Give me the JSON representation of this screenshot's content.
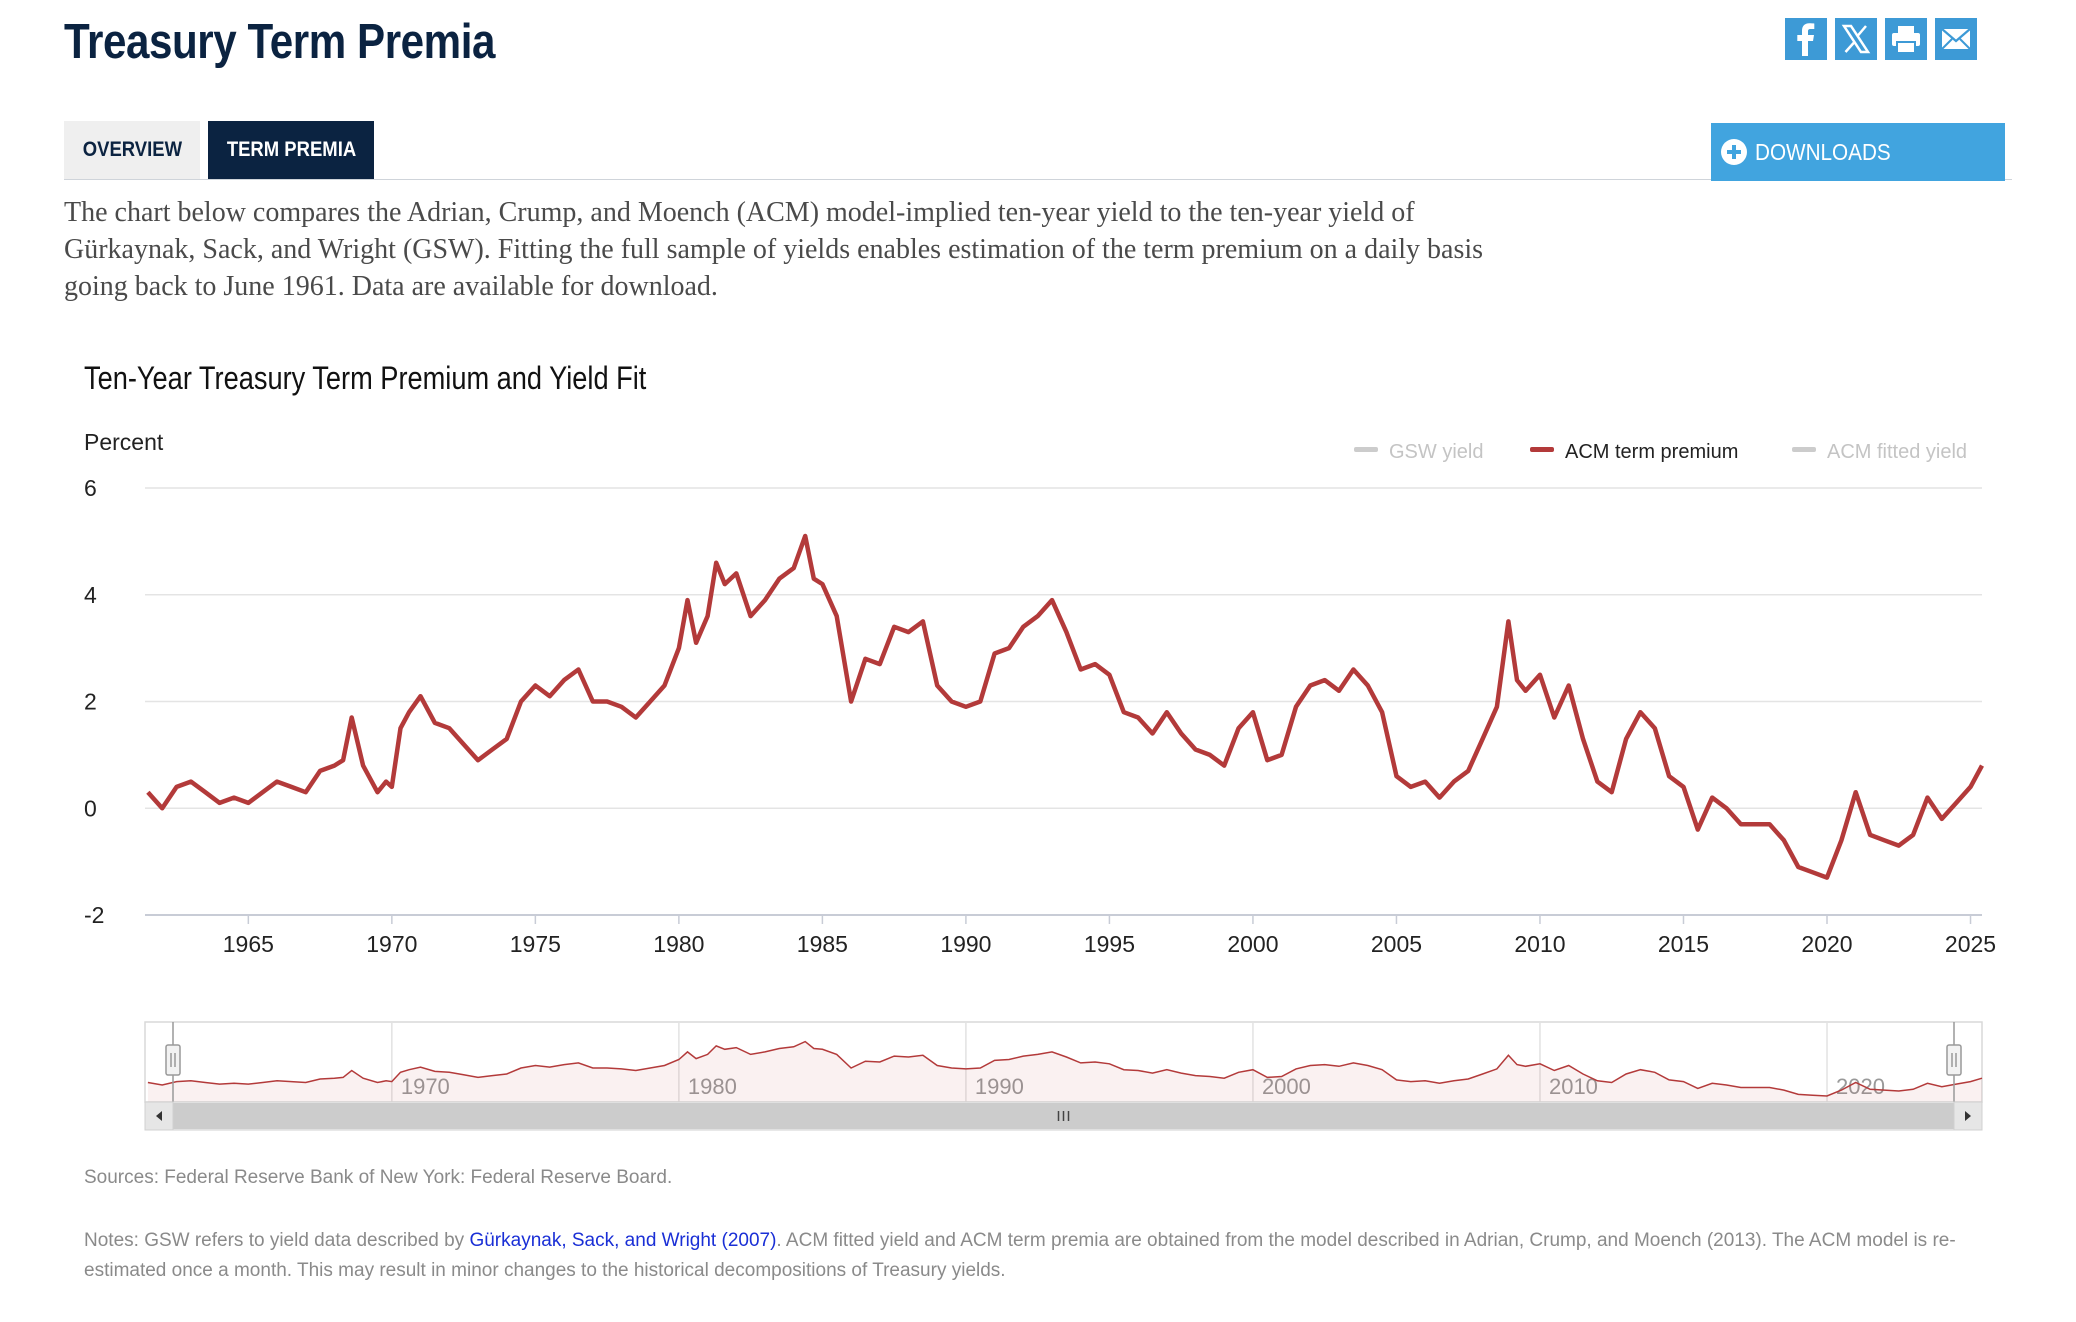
{
  "page": {
    "title": "Treasury Term Premia",
    "tabs": [
      "OVERVIEW",
      "TERM PREMIA"
    ],
    "downloads_label": "DOWNLOADS",
    "share_icons": [
      "facebook-icon",
      "x-icon",
      "print-icon",
      "email-icon"
    ],
    "intro": "The chart below compares the Adrian, Crump, and Moench (ACM) model-implied ten-year yield to the ten-year yield of Gürkaynak, Sack, and Wright (GSW). Fitting the full sample of yields enables estimation of the term premium on a daily basis going back to June 1961. Data are available for download.",
    "sources": "Sources: Federal Reserve Bank of New York: Federal Reserve Board.",
    "notes_prefix": "Notes: GSW refers to yield data described by ",
    "notes_link": "Gürkaynak, Sack, and Wright (2007)",
    "notes_suffix": ". ACM fitted yield and ACM term premia are obtained from the model described in Adrian, Crump, and Moench (2013). The ACM model is re-estimated once a month. This may result in minor changes to the historical decompositions of Treasury yields."
  },
  "colors": {
    "navy": "#0b2341",
    "share_blue": "#3d9ad6",
    "downloads_blue": "#41a4df",
    "series_red": "#b33a3a",
    "legend_grey": "#cccccc"
  },
  "chart_data": {
    "type": "line",
    "title": "Ten-Year Treasury Term Premium and Yield Fit",
    "ylabel": "Percent",
    "xlabel": "",
    "ylim": [
      -2,
      6
    ],
    "xlim": [
      1961.4,
      2025.4
    ],
    "y_ticks": [
      "6",
      "4",
      "2",
      "0",
      "-2"
    ],
    "x_ticks": [
      "1965",
      "1970",
      "1975",
      "1980",
      "1985",
      "1990",
      "1995",
      "2000",
      "2005",
      "2010",
      "2015",
      "2020",
      "2025"
    ],
    "navigator_ticks": [
      "1970",
      "1980",
      "1990",
      "2000",
      "2010",
      "2020"
    ],
    "grid": true,
    "legend_position": "top-right",
    "legend": [
      {
        "name": "GSW yield",
        "visible": false
      },
      {
        "name": "ACM term premium",
        "visible": true
      },
      {
        "name": "ACM fitted yield",
        "visible": false
      }
    ],
    "series": [
      {
        "name": "ACM term premium",
        "x": [
          1961.5,
          1962.0,
          1962.5,
          1963.0,
          1963.5,
          1964.0,
          1964.5,
          1965.0,
          1965.5,
          1966.0,
          1966.5,
          1967.0,
          1967.5,
          1968.0,
          1968.3,
          1968.6,
          1969.0,
          1969.5,
          1969.8,
          1970.0,
          1970.3,
          1970.6,
          1971.0,
          1971.5,
          1972.0,
          1972.5,
          1973.0,
          1973.5,
          1974.0,
          1974.5,
          1975.0,
          1975.5,
          1976.0,
          1976.5,
          1977.0,
          1977.5,
          1978.0,
          1978.5,
          1979.0,
          1979.5,
          1980.0,
          1980.3,
          1980.6,
          1981.0,
          1981.3,
          1981.6,
          1982.0,
          1982.5,
          1983.0,
          1983.5,
          1984.0,
          1984.4,
          1984.7,
          1985.0,
          1985.5,
          1986.0,
          1986.5,
          1987.0,
          1987.5,
          1988.0,
          1988.5,
          1989.0,
          1989.5,
          1990.0,
          1990.5,
          1991.0,
          1991.5,
          1992.0,
          1992.5,
          1993.0,
          1993.5,
          1994.0,
          1994.5,
          1995.0,
          1995.5,
          1996.0,
          1996.5,
          1997.0,
          1997.5,
          1998.0,
          1998.5,
          1999.0,
          1999.5,
          2000.0,
          2000.5,
          2001.0,
          2001.5,
          2002.0,
          2002.5,
          2003.0,
          2003.5,
          2004.0,
          2004.5,
          2005.0,
          2005.5,
          2006.0,
          2006.5,
          2007.0,
          2007.5,
          2008.0,
          2008.5,
          2008.9,
          2009.2,
          2009.5,
          2010.0,
          2010.5,
          2011.0,
          2011.5,
          2012.0,
          2012.5,
          2013.0,
          2013.5,
          2014.0,
          2014.5,
          2015.0,
          2015.5,
          2016.0,
          2016.5,
          2017.0,
          2017.5,
          2018.0,
          2018.5,
          2019.0,
          2019.5,
          2020.0,
          2020.5,
          2021.0,
          2021.5,
          2022.0,
          2022.5,
          2023.0,
          2023.5,
          2024.0,
          2024.5,
          2025.0,
          2025.4
        ],
        "values": [
          0.3,
          0.0,
          0.4,
          0.5,
          0.3,
          0.1,
          0.2,
          0.1,
          0.3,
          0.5,
          0.4,
          0.3,
          0.7,
          0.8,
          0.9,
          1.7,
          0.8,
          0.3,
          0.5,
          0.4,
          1.5,
          1.8,
          2.1,
          1.6,
          1.5,
          1.2,
          0.9,
          1.1,
          1.3,
          2.0,
          2.3,
          2.1,
          2.4,
          2.6,
          2.0,
          2.0,
          1.9,
          1.7,
          2.0,
          2.3,
          3.0,
          3.9,
          3.1,
          3.6,
          4.6,
          4.2,
          4.4,
          3.6,
          3.9,
          4.3,
          4.5,
          5.1,
          4.3,
          4.2,
          3.6,
          2.0,
          2.8,
          2.7,
          3.4,
          3.3,
          3.5,
          2.3,
          2.0,
          1.9,
          2.0,
          2.9,
          3.0,
          3.4,
          3.6,
          3.9,
          3.3,
          2.6,
          2.7,
          2.5,
          1.8,
          1.7,
          1.4,
          1.8,
          1.4,
          1.1,
          1.0,
          0.8,
          1.5,
          1.8,
          0.9,
          1.0,
          1.9,
          2.3,
          2.4,
          2.2,
          2.6,
          2.3,
          1.8,
          0.6,
          0.4,
          0.5,
          0.2,
          0.5,
          0.7,
          1.3,
          1.9,
          3.5,
          2.4,
          2.2,
          2.5,
          1.7,
          2.3,
          1.3,
          0.5,
          0.3,
          1.3,
          1.8,
          1.5,
          0.6,
          0.4,
          -0.4,
          0.2,
          0.0,
          -0.3,
          -0.3,
          -0.3,
          -0.6,
          -1.1,
          -1.2,
          -1.3,
          -0.6,
          0.3,
          -0.5,
          -0.6,
          -0.7,
          -0.5,
          0.2,
          -0.2,
          0.1,
          0.4,
          0.8
        ]
      }
    ]
  }
}
